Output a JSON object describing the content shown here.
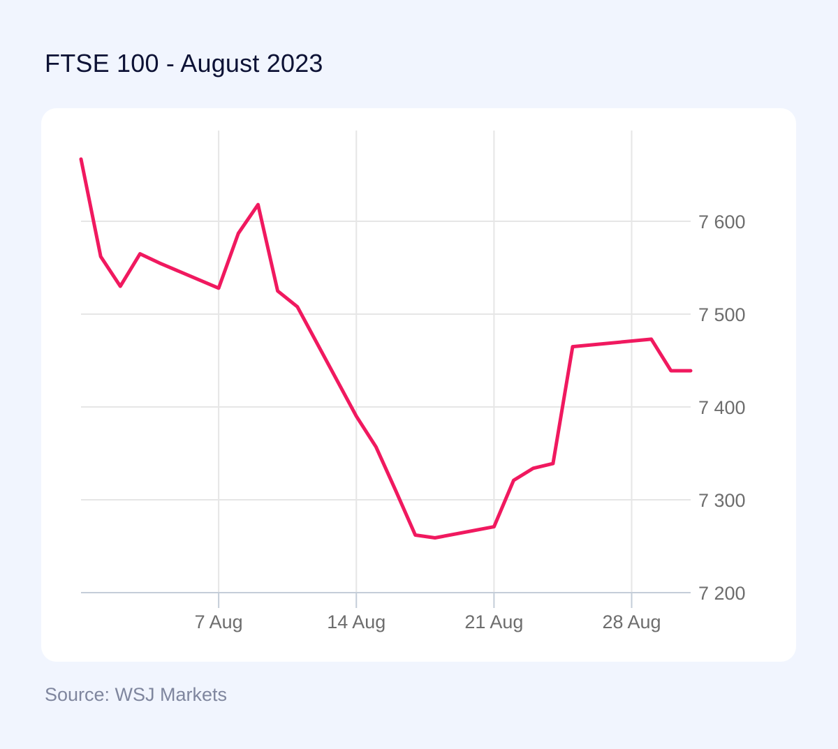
{
  "page": {
    "title": "FTSE 100 - August 2023",
    "source": "Source: WSJ Markets"
  },
  "chart_data": {
    "type": "line",
    "title": "FTSE 100 - August 2023",
    "xlabel": "",
    "ylabel": "",
    "x": [
      "2023-07-31",
      "2023-08-01",
      "2023-08-02",
      "2023-08-03",
      "2023-08-04",
      "2023-08-07",
      "2023-08-08",
      "2023-08-09",
      "2023-08-10",
      "2023-08-11",
      "2023-08-14",
      "2023-08-15",
      "2023-08-16",
      "2023-08-17",
      "2023-08-18",
      "2023-08-21",
      "2023-08-22",
      "2023-08-23",
      "2023-08-24",
      "2023-08-25",
      "2023-08-29",
      "2023-08-30",
      "2023-08-31"
    ],
    "series": [
      {
        "values": [
          7667,
          7562,
          7530,
          7565,
          7555,
          7528,
          7587,
          7618,
          7525,
          7508,
          7390,
          7357,
          7310,
          7262,
          7259,
          7271,
          7321,
          7334,
          7339,
          7465,
          7473,
          7439,
          7439
        ]
      }
    ],
    "x_ticks": [
      {
        "date": "2023-08-07",
        "label": "7 Aug"
      },
      {
        "date": "2023-08-14",
        "label": "14 Aug"
      },
      {
        "date": "2023-08-21",
        "label": "21 Aug"
      },
      {
        "date": "2023-08-28",
        "label": "28 Aug"
      }
    ],
    "y_ticks": [
      {
        "value": 7200,
        "label": "7 200"
      },
      {
        "value": 7300,
        "label": "7 300"
      },
      {
        "value": 7400,
        "label": "7 400"
      },
      {
        "value": 7500,
        "label": "7 500"
      },
      {
        "value": 7600,
        "label": "7 600"
      }
    ],
    "ylim": [
      7200,
      7700
    ],
    "xlim": [
      "2023-07-31",
      "2023-08-31"
    ],
    "grid": true,
    "y_axis_side": "right",
    "line_color": "#f0195f"
  }
}
